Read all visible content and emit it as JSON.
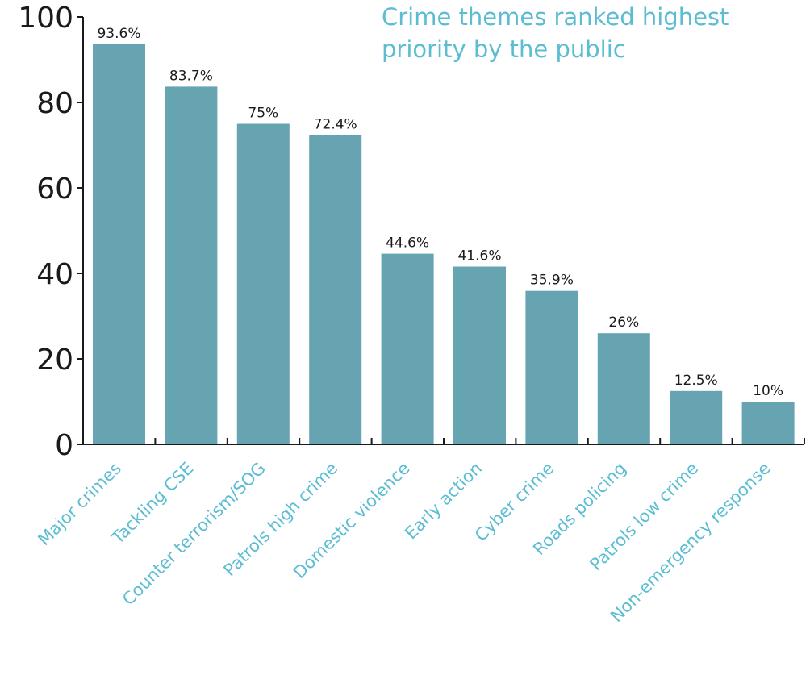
{
  "colors": {
    "bar": "#66a4b2",
    "accent": "#5bbdd1",
    "axis": "#1a1a1a"
  },
  "chart_data": {
    "type": "bar",
    "title_lines": [
      "Crime themes ranked highest",
      "priority by the public"
    ],
    "categories": [
      "Major crimes",
      "Tackling CSE",
      "Counter terrorism/SOG",
      "Patrols high crime",
      "Domestic violence",
      "Early action",
      "Cyber crime",
      "Roads policing",
      "Patrols low crime",
      "Non-emergency response"
    ],
    "values": [
      93.6,
      83.7,
      75,
      72.4,
      44.6,
      41.6,
      35.9,
      26,
      12.5,
      10
    ],
    "data_labels": [
      "93.6%",
      "83.7%",
      "75%",
      "72.4%",
      "44.6%",
      "41.6%",
      "35.9%",
      "26%",
      "12.5%",
      "10%"
    ],
    "yticks": [
      "0",
      "20",
      "40",
      "60",
      "80",
      "100"
    ],
    "ylim": [
      0,
      100
    ],
    "grid": false,
    "xlabel": "",
    "ylabel": ""
  }
}
